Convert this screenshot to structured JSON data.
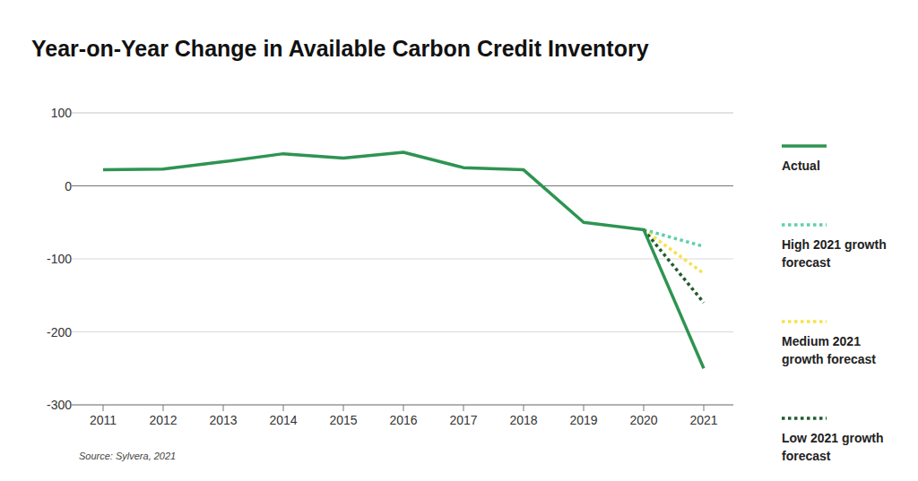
{
  "chart_data": {
    "type": "line",
    "title": "Year-on-Year Change in Available Carbon Credit Inventory",
    "source": "Source:  Sylvera, 2021",
    "categories": [
      "2011",
      "2012",
      "2013",
      "2014",
      "2015",
      "2016",
      "2017",
      "2018",
      "2019",
      "2020",
      "2021"
    ],
    "series": [
      {
        "name": "Actual",
        "color": "#2e9451",
        "line_style": "solid",
        "values": [
          22,
          23,
          33,
          44,
          38,
          46,
          25,
          22,
          -50,
          -60,
          -250
        ]
      },
      {
        "name": "High 2021 growth forecast",
        "color": "#5fcfa9",
        "line_style": "dotted",
        "values": [
          null,
          null,
          null,
          null,
          null,
          null,
          null,
          null,
          null,
          -60,
          -83
        ]
      },
      {
        "name": "Medium 2021 growth forecast",
        "color": "#f7e24b",
        "line_style": "dotted",
        "values": [
          null,
          null,
          null,
          null,
          null,
          null,
          null,
          null,
          null,
          -60,
          -120
        ]
      },
      {
        "name": "Low 2021 growth forecast",
        "color": "#1f5c31",
        "line_style": "dotted",
        "values": [
          null,
          null,
          null,
          null,
          null,
          null,
          null,
          null,
          null,
          -60,
          -160
        ]
      }
    ],
    "ylim": [
      -300,
      100
    ],
    "yticks": [
      -300,
      -200,
      -100,
      0,
      100
    ],
    "grid": true,
    "legend": "right"
  }
}
